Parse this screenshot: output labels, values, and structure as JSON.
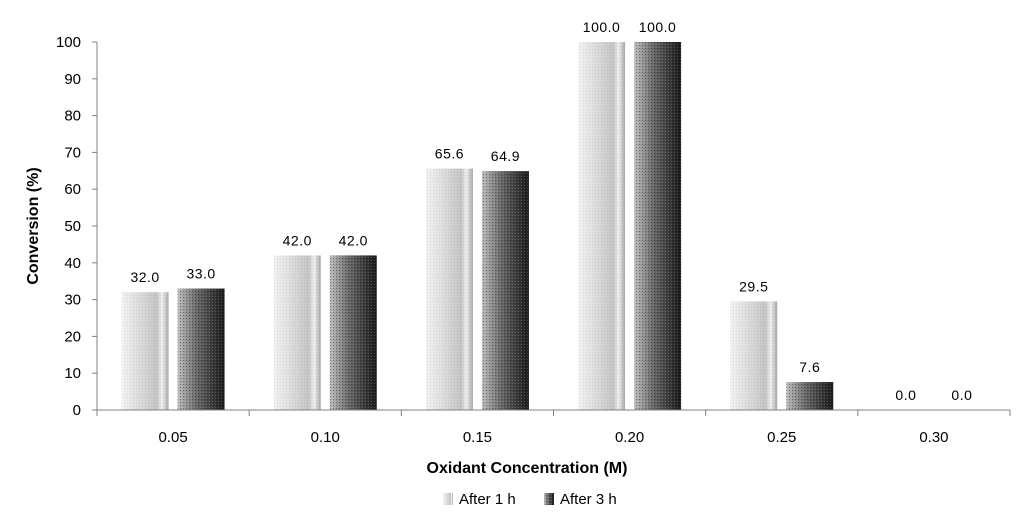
{
  "chart_data": {
    "type": "bar",
    "categories": [
      "0.05",
      "0.10",
      "0.15",
      "0.20",
      "0.25",
      "0.30"
    ],
    "series": [
      {
        "name": "After 1 h",
        "values": [
          32.0,
          42.0,
          65.6,
          100.0,
          29.5,
          0.0
        ],
        "labels": [
          "32.0",
          "42.0",
          "65.6",
          "100.0",
          "29.5",
          "0.0"
        ]
      },
      {
        "name": "After 3 h",
        "values": [
          33.0,
          42.0,
          64.9,
          100.0,
          7.6,
          0.0
        ],
        "labels": [
          "33.0",
          "42.0",
          "64.9",
          "100.0",
          "7.6",
          "0.0"
        ]
      }
    ],
    "title": "",
    "xlabel": "Oxidant Concentration (M)",
    "ylabel": "Conversion (%)",
    "ylim": [
      0,
      100
    ],
    "yticks": [
      "0",
      "10",
      "20",
      "30",
      "40",
      "50",
      "60",
      "70",
      "80",
      "90",
      "100"
    ],
    "grid": false,
    "legend_position": "bottom",
    "colors": {
      "series1_light": "#ececec",
      "series1_dark": "#a4a4a4",
      "series2_light": "#4a4a4a",
      "series2_dark": "#1e1e1e",
      "axis": "#808080"
    }
  }
}
